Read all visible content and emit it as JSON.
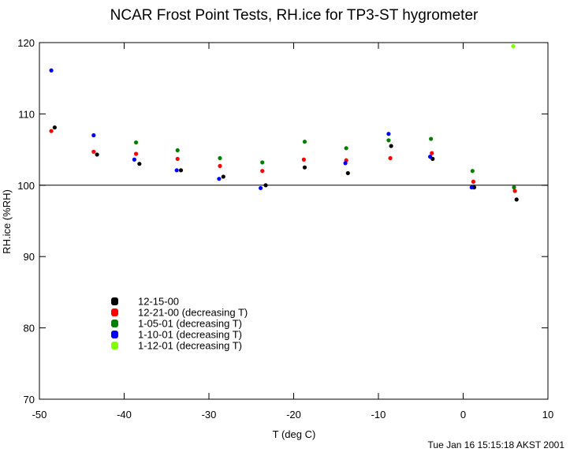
{
  "chart_data": {
    "type": "scatter",
    "title": "NCAR Frost Point Tests, RH.ice for TP3-ST hygrometer",
    "xlabel": "T (deg C)",
    "ylabel": "RH.ice (%RH)",
    "xlim": [
      -50,
      10
    ],
    "ylim": [
      70,
      120
    ],
    "xticks": [
      -50,
      -40,
      -30,
      -20,
      -10,
      0,
      10
    ],
    "yticks": [
      70,
      80,
      90,
      100,
      110,
      120
    ],
    "reference_line": 100,
    "legend_position": "lower-left",
    "footer": "Tue Jan 16 15:15:18 AKST 2001",
    "series": [
      {
        "name": "12-15-00",
        "color": "#000000",
        "points": [
          [
            -48.2,
            108.1
          ],
          [
            -43.2,
            104.3
          ],
          [
            -38.2,
            103.0
          ],
          [
            -33.3,
            102.1
          ],
          [
            -28.3,
            101.2
          ],
          [
            -23.3,
            100.0
          ],
          [
            -18.7,
            102.5
          ],
          [
            -13.6,
            101.7
          ],
          [
            -8.5,
            105.5
          ],
          [
            -3.6,
            103.7
          ],
          [
            1.3,
            99.7
          ],
          [
            6.3,
            98.0
          ]
        ]
      },
      {
        "name": "12-21-00 (decreasing T)",
        "color": "#ff0000",
        "points": [
          [
            -48.6,
            107.6
          ],
          [
            -43.6,
            104.7
          ],
          [
            -38.6,
            104.4
          ],
          [
            -33.7,
            103.7
          ],
          [
            -28.7,
            102.7
          ],
          [
            -23.7,
            102.0
          ],
          [
            -18.8,
            103.6
          ],
          [
            -13.8,
            103.5
          ],
          [
            -8.6,
            103.8
          ],
          [
            -3.7,
            104.5
          ],
          [
            1.2,
            100.5
          ],
          [
            6.1,
            99.2
          ]
        ]
      },
      {
        "name": "1-05-01 (decreasing T)",
        "color": "#008000",
        "points": [
          [
            -38.6,
            106.0
          ],
          [
            -33.7,
            104.9
          ],
          [
            -28.7,
            103.8
          ],
          [
            -23.7,
            103.2
          ],
          [
            -18.7,
            106.1
          ],
          [
            -13.8,
            105.2
          ],
          [
            -8.8,
            106.3
          ],
          [
            -3.8,
            106.5
          ],
          [
            1.1,
            102.0
          ],
          [
            6.0,
            99.7
          ]
        ]
      },
      {
        "name": "1-10-01 (decreasing T)",
        "color": "#0000ff",
        "points": [
          [
            -48.6,
            116.1
          ],
          [
            -43.6,
            107.0
          ],
          [
            -38.8,
            103.6
          ],
          [
            -33.8,
            102.1
          ],
          [
            -28.8,
            100.9
          ],
          [
            -23.9,
            99.6
          ],
          [
            -13.9,
            103.1
          ],
          [
            -8.8,
            107.2
          ],
          [
            -3.9,
            104.0
          ],
          [
            1.0,
            99.7
          ]
        ]
      },
      {
        "name": "1-12-01 (decreasing T)",
        "color": "#7fff00",
        "points": [
          [
            5.9,
            119.5
          ]
        ]
      }
    ]
  }
}
